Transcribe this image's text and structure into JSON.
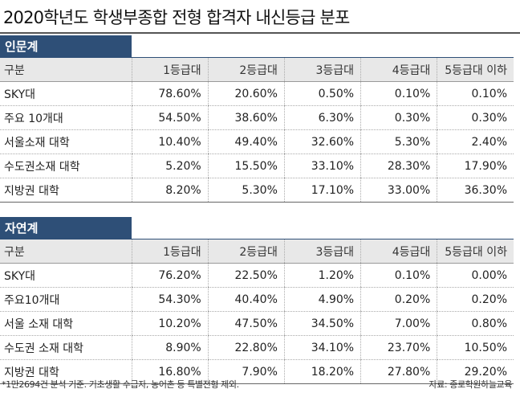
{
  "title": "2020학년도 학생부종합 전형 합격자 내신등급 분포",
  "sections": [
    {
      "label": "인문계",
      "header": [
        "구분",
        "1등급대",
        "2등급대",
        "3등급대",
        "4등급대",
        "5등급대 이하"
      ],
      "rows": [
        [
          "SKY대",
          "78.60%",
          "20.60%",
          "0.50%",
          "0.10%",
          "0.10%"
        ],
        [
          "주요 10개대",
          "54.50%",
          "38.60%",
          "6.30%",
          "0.30%",
          "0.30%"
        ],
        [
          "서울소재 대학",
          "10.40%",
          "49.40%",
          "32.60%",
          "5.30%",
          "2.40%"
        ],
        [
          "수도권소재 대학",
          "5.20%",
          "15.50%",
          "33.10%",
          "28.30%",
          "17.90%"
        ],
        [
          "지방권 대학",
          "8.20%",
          "5.30%",
          "17.10%",
          "33.00%",
          "36.30%"
        ]
      ]
    },
    {
      "label": "자연계",
      "header": [
        "구분",
        "1등급대",
        "2등급대",
        "3등급대",
        "4등급대",
        "5등급대 이하"
      ],
      "rows": [
        [
          "SKY대",
          "76.20%",
          "22.50%",
          "1.20%",
          "0.10%",
          "0.00%"
        ],
        [
          "주요10개대",
          "54.30%",
          "40.40%",
          "4.90%",
          "0.20%",
          "0.20%"
        ],
        [
          "서울 소재 대학",
          "10.20%",
          "47.50%",
          "34.50%",
          "7.00%",
          "0.80%"
        ],
        [
          "수도권 소재 대학",
          "8.90%",
          "22.80%",
          "34.10%",
          "23.70%",
          "10.50%"
        ],
        [
          "지방권 대학",
          "16.80%",
          "7.90%",
          "18.20%",
          "27.80%",
          "29.20%"
        ]
      ]
    }
  ],
  "footnote": "*1만2694건 분석 기준. 기초생활 수급자, 농어촌 등 특별전형 제외.",
  "source": "자료: 종로학원하늘교육"
}
